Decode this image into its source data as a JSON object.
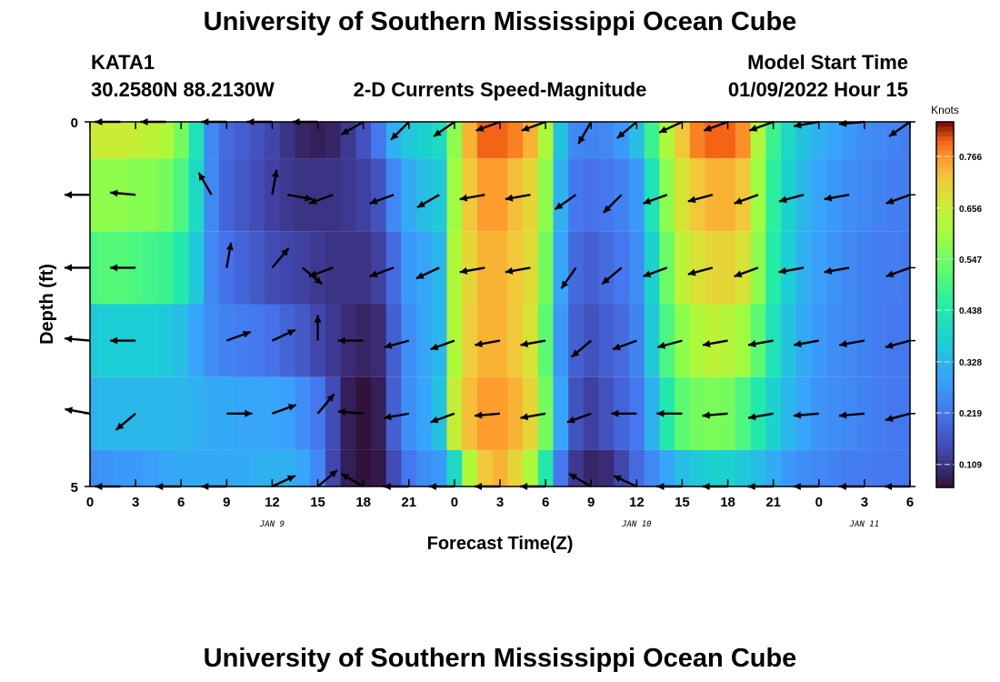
{
  "page": {
    "title": "University of Southern Mississippi Ocean Cube",
    "footer_title": "University of Southern Mississippi Ocean Cube",
    "station": "KATA1",
    "coords": "30.2580N  88.2130W",
    "product": "2-D Currents Speed-Magnitude",
    "model_start_label": "Model Start Time",
    "model_start_value": "01/09/2022 Hour 15"
  },
  "chart_data": {
    "type": "heatmap",
    "title": "2-D Currents Speed-Magnitude",
    "xlabel": "Forecast Time(Z)",
    "ylabel": "Depth (ft)",
    "x_tick_labels": [
      "0",
      "3",
      "6",
      "9",
      "12",
      "15",
      "18",
      "21",
      "0",
      "3",
      "6",
      "9",
      "12",
      "15",
      "18",
      "21",
      "0",
      "3",
      "6"
    ],
    "date_labels": [
      {
        "label": "JAN 9",
        "hour": 12
      },
      {
        "label": "JAN 10",
        "hour": 36
      },
      {
        "label": "JAN 11",
        "hour": 51
      }
    ],
    "x_range_hours": [
      0,
      54
    ],
    "y_tick_labels": [
      "0",
      "5"
    ],
    "y_range": [
      0,
      5
    ],
    "colorbar": {
      "label": "Knots",
      "ticks": [
        0.109,
        0.219,
        0.328,
        0.438,
        0.547,
        0.656,
        0.766
      ],
      "range": [
        0.06,
        0.84
      ]
    },
    "speed_columns": [
      {
        "hour": 0,
        "v": [
          0.66,
          0.58,
          0.5,
          0.36,
          0.32,
          0.26
        ]
      },
      {
        "hour": 1,
        "v": [
          0.66,
          0.58,
          0.51,
          0.37,
          0.33,
          0.27
        ]
      },
      {
        "hour": 2,
        "v": [
          0.66,
          0.58,
          0.51,
          0.37,
          0.33,
          0.28
        ]
      },
      {
        "hour": 3,
        "v": [
          0.65,
          0.57,
          0.5,
          0.37,
          0.33,
          0.28
        ]
      },
      {
        "hour": 4,
        "v": [
          0.64,
          0.57,
          0.49,
          0.37,
          0.33,
          0.29
        ]
      },
      {
        "hour": 5,
        "v": [
          0.62,
          0.55,
          0.48,
          0.36,
          0.33,
          0.3
        ]
      },
      {
        "hour": 6,
        "v": [
          0.55,
          0.5,
          0.44,
          0.34,
          0.33,
          0.31
        ]
      },
      {
        "hour": 7,
        "v": [
          0.42,
          0.4,
          0.36,
          0.3,
          0.32,
          0.31
        ]
      },
      {
        "hour": 8,
        "v": [
          0.25,
          0.25,
          0.25,
          0.26,
          0.31,
          0.31
        ]
      },
      {
        "hour": 9,
        "v": [
          0.2,
          0.19,
          0.21,
          0.24,
          0.31,
          0.31
        ]
      },
      {
        "hour": 10,
        "v": [
          0.18,
          0.17,
          0.19,
          0.23,
          0.3,
          0.31
        ]
      },
      {
        "hour": 11,
        "v": [
          0.16,
          0.15,
          0.17,
          0.22,
          0.3,
          0.32
        ]
      },
      {
        "hour": 12,
        "v": [
          0.14,
          0.13,
          0.15,
          0.21,
          0.3,
          0.32
        ]
      },
      {
        "hour": 13,
        "v": [
          0.11,
          0.12,
          0.14,
          0.19,
          0.29,
          0.32
        ]
      },
      {
        "hour": 14,
        "v": [
          0.09,
          0.11,
          0.13,
          0.17,
          0.26,
          0.3
        ]
      },
      {
        "hour": 15,
        "v": [
          0.08,
          0.11,
          0.12,
          0.14,
          0.22,
          0.25
        ]
      },
      {
        "hour": 16,
        "v": [
          0.09,
          0.11,
          0.11,
          0.12,
          0.15,
          0.14
        ]
      },
      {
        "hour": 17,
        "v": [
          0.12,
          0.12,
          0.11,
          0.1,
          0.08,
          0.08
        ]
      },
      {
        "hour": 18,
        "v": [
          0.16,
          0.13,
          0.11,
          0.09,
          0.06,
          0.06
        ]
      },
      {
        "hour": 19,
        "v": [
          0.22,
          0.16,
          0.13,
          0.1,
          0.08,
          0.07
        ]
      },
      {
        "hour": 20,
        "v": [
          0.32,
          0.25,
          0.2,
          0.18,
          0.18,
          0.15
        ]
      },
      {
        "hour": 21,
        "v": [
          0.36,
          0.31,
          0.28,
          0.26,
          0.26,
          0.22
        ]
      },
      {
        "hour": 22,
        "v": [
          0.38,
          0.34,
          0.3,
          0.3,
          0.3,
          0.26
        ]
      },
      {
        "hour": 23,
        "v": [
          0.4,
          0.36,
          0.33,
          0.33,
          0.35,
          0.28
        ]
      },
      {
        "hour": 24,
        "v": [
          0.58,
          0.6,
          0.62,
          0.62,
          0.65,
          0.4
        ]
      },
      {
        "hour": 25,
        "v": [
          0.74,
          0.72,
          0.7,
          0.71,
          0.73,
          0.62
        ]
      },
      {
        "hour": 26,
        "v": [
          0.8,
          0.76,
          0.74,
          0.74,
          0.76,
          0.72
        ]
      },
      {
        "hour": 27,
        "v": [
          0.8,
          0.76,
          0.74,
          0.74,
          0.76,
          0.74
        ]
      },
      {
        "hour": 28,
        "v": [
          0.78,
          0.73,
          0.72,
          0.72,
          0.74,
          0.7
        ]
      },
      {
        "hour": 29,
        "v": [
          0.74,
          0.7,
          0.69,
          0.68,
          0.7,
          0.62
        ]
      },
      {
        "hour": 30,
        "v": [
          0.62,
          0.58,
          0.55,
          0.52,
          0.55,
          0.44
        ]
      },
      {
        "hour": 31,
        "v": [
          0.35,
          0.32,
          0.3,
          0.28,
          0.3,
          0.22
        ]
      },
      {
        "hour": 32,
        "v": [
          0.25,
          0.22,
          0.2,
          0.18,
          0.16,
          0.12
        ]
      },
      {
        "hour": 33,
        "v": [
          0.24,
          0.21,
          0.18,
          0.16,
          0.13,
          0.09
        ]
      },
      {
        "hour": 34,
        "v": [
          0.25,
          0.22,
          0.2,
          0.18,
          0.16,
          0.1
        ]
      },
      {
        "hour": 35,
        "v": [
          0.28,
          0.24,
          0.22,
          0.2,
          0.19,
          0.14
        ]
      },
      {
        "hour": 36,
        "v": [
          0.34,
          0.28,
          0.26,
          0.24,
          0.22,
          0.2
        ]
      },
      {
        "hour": 37,
        "v": [
          0.48,
          0.42,
          0.38,
          0.36,
          0.32,
          0.25
        ]
      },
      {
        "hour": 38,
        "v": [
          0.62,
          0.58,
          0.54,
          0.5,
          0.44,
          0.3
        ]
      },
      {
        "hour": 39,
        "v": [
          0.72,
          0.68,
          0.64,
          0.58,
          0.52,
          0.34
        ]
      },
      {
        "hour": 40,
        "v": [
          0.78,
          0.72,
          0.68,
          0.62,
          0.55,
          0.36
        ]
      },
      {
        "hour": 41,
        "v": [
          0.8,
          0.74,
          0.7,
          0.64,
          0.56,
          0.38
        ]
      },
      {
        "hour": 42,
        "v": [
          0.8,
          0.74,
          0.7,
          0.63,
          0.55,
          0.38
        ]
      },
      {
        "hour": 43,
        "v": [
          0.77,
          0.72,
          0.68,
          0.6,
          0.5,
          0.36
        ]
      },
      {
        "hour": 44,
        "v": [
          0.62,
          0.6,
          0.58,
          0.52,
          0.44,
          0.34
        ]
      },
      {
        "hour": 45,
        "v": [
          0.48,
          0.46,
          0.45,
          0.42,
          0.38,
          0.31
        ]
      },
      {
        "hour": 46,
        "v": [
          0.4,
          0.38,
          0.37,
          0.35,
          0.33,
          0.28
        ]
      },
      {
        "hour": 47,
        "v": [
          0.35,
          0.33,
          0.32,
          0.31,
          0.3,
          0.26
        ]
      },
      {
        "hour": 48,
        "v": [
          0.32,
          0.3,
          0.29,
          0.28,
          0.27,
          0.25
        ]
      },
      {
        "hour": 49,
        "v": [
          0.3,
          0.28,
          0.27,
          0.26,
          0.26,
          0.24
        ]
      },
      {
        "hour": 50,
        "v": [
          0.28,
          0.26,
          0.25,
          0.25,
          0.25,
          0.23
        ]
      },
      {
        "hour": 51,
        "v": [
          0.26,
          0.25,
          0.24,
          0.24,
          0.24,
          0.23
        ]
      },
      {
        "hour": 52,
        "v": [
          0.25,
          0.24,
          0.23,
          0.23,
          0.23,
          0.22
        ]
      },
      {
        "hour": 53,
        "v": [
          0.24,
          0.23,
          0.23,
          0.22,
          0.22,
          0.22
        ]
      },
      {
        "hour": 54,
        "v": [
          0.23,
          0.23,
          0.22,
          0.22,
          0.22,
          0.22
        ]
      }
    ],
    "vector_rows": [
      {
        "depth": 0,
        "hours": [
          2,
          5,
          9,
          12,
          15,
          18,
          21,
          24,
          27,
          30,
          33,
          36,
          39,
          42,
          45,
          48,
          51,
          54
        ],
        "angles": [
          180,
          180,
          180,
          180,
          180,
          210,
          225,
          215,
          200,
          200,
          240,
          220,
          205,
          200,
          200,
          190,
          185,
          215
        ]
      },
      {
        "depth": 1,
        "hours": [
          0,
          3,
          8,
          12,
          13,
          16,
          20,
          23,
          26,
          29,
          32,
          35,
          38,
          41,
          44,
          47,
          50,
          54
        ],
        "angles": [
          180,
          175,
          120,
          80,
          350,
          200,
          200,
          210,
          190,
          190,
          215,
          225,
          200,
          195,
          200,
          195,
          190,
          200
        ]
      },
      {
        "depth": 2,
        "hours": [
          0,
          3,
          9,
          12,
          14,
          16,
          20,
          23,
          26,
          29,
          32,
          35,
          38,
          41,
          44,
          47,
          50,
          54
        ],
        "angles": [
          180,
          180,
          80,
          50,
          320,
          200,
          200,
          205,
          190,
          190,
          235,
          220,
          200,
          195,
          200,
          190,
          190,
          200
        ]
      },
      {
        "depth": 3,
        "hours": [
          0,
          3,
          9,
          12,
          15,
          18,
          21,
          24,
          27,
          30,
          33,
          36,
          39,
          42,
          45,
          48,
          51,
          54
        ],
        "angles": [
          175,
          180,
          20,
          25,
          90,
          180,
          195,
          200,
          190,
          190,
          220,
          200,
          195,
          190,
          190,
          190,
          190,
          195
        ]
      },
      {
        "depth": 4,
        "hours": [
          0,
          3,
          9,
          12,
          15,
          18,
          21,
          24,
          27,
          30,
          33,
          36,
          39,
          42,
          45,
          48,
          51,
          54
        ],
        "angles": [
          170,
          220,
          0,
          20,
          50,
          175,
          190,
          200,
          185,
          190,
          200,
          180,
          180,
          185,
          190,
          185,
          185,
          195
        ]
      },
      {
        "depth": 5,
        "hours": [
          2,
          6,
          9,
          12,
          15,
          18,
          21,
          24,
          27,
          30,
          33,
          36,
          39,
          42,
          45,
          48,
          51,
          54
        ],
        "angles": [
          180,
          180,
          180,
          25,
          40,
          150,
          180,
          180,
          180,
          180,
          150,
          155,
          180,
          180,
          180,
          180,
          180,
          180
        ]
      }
    ]
  }
}
